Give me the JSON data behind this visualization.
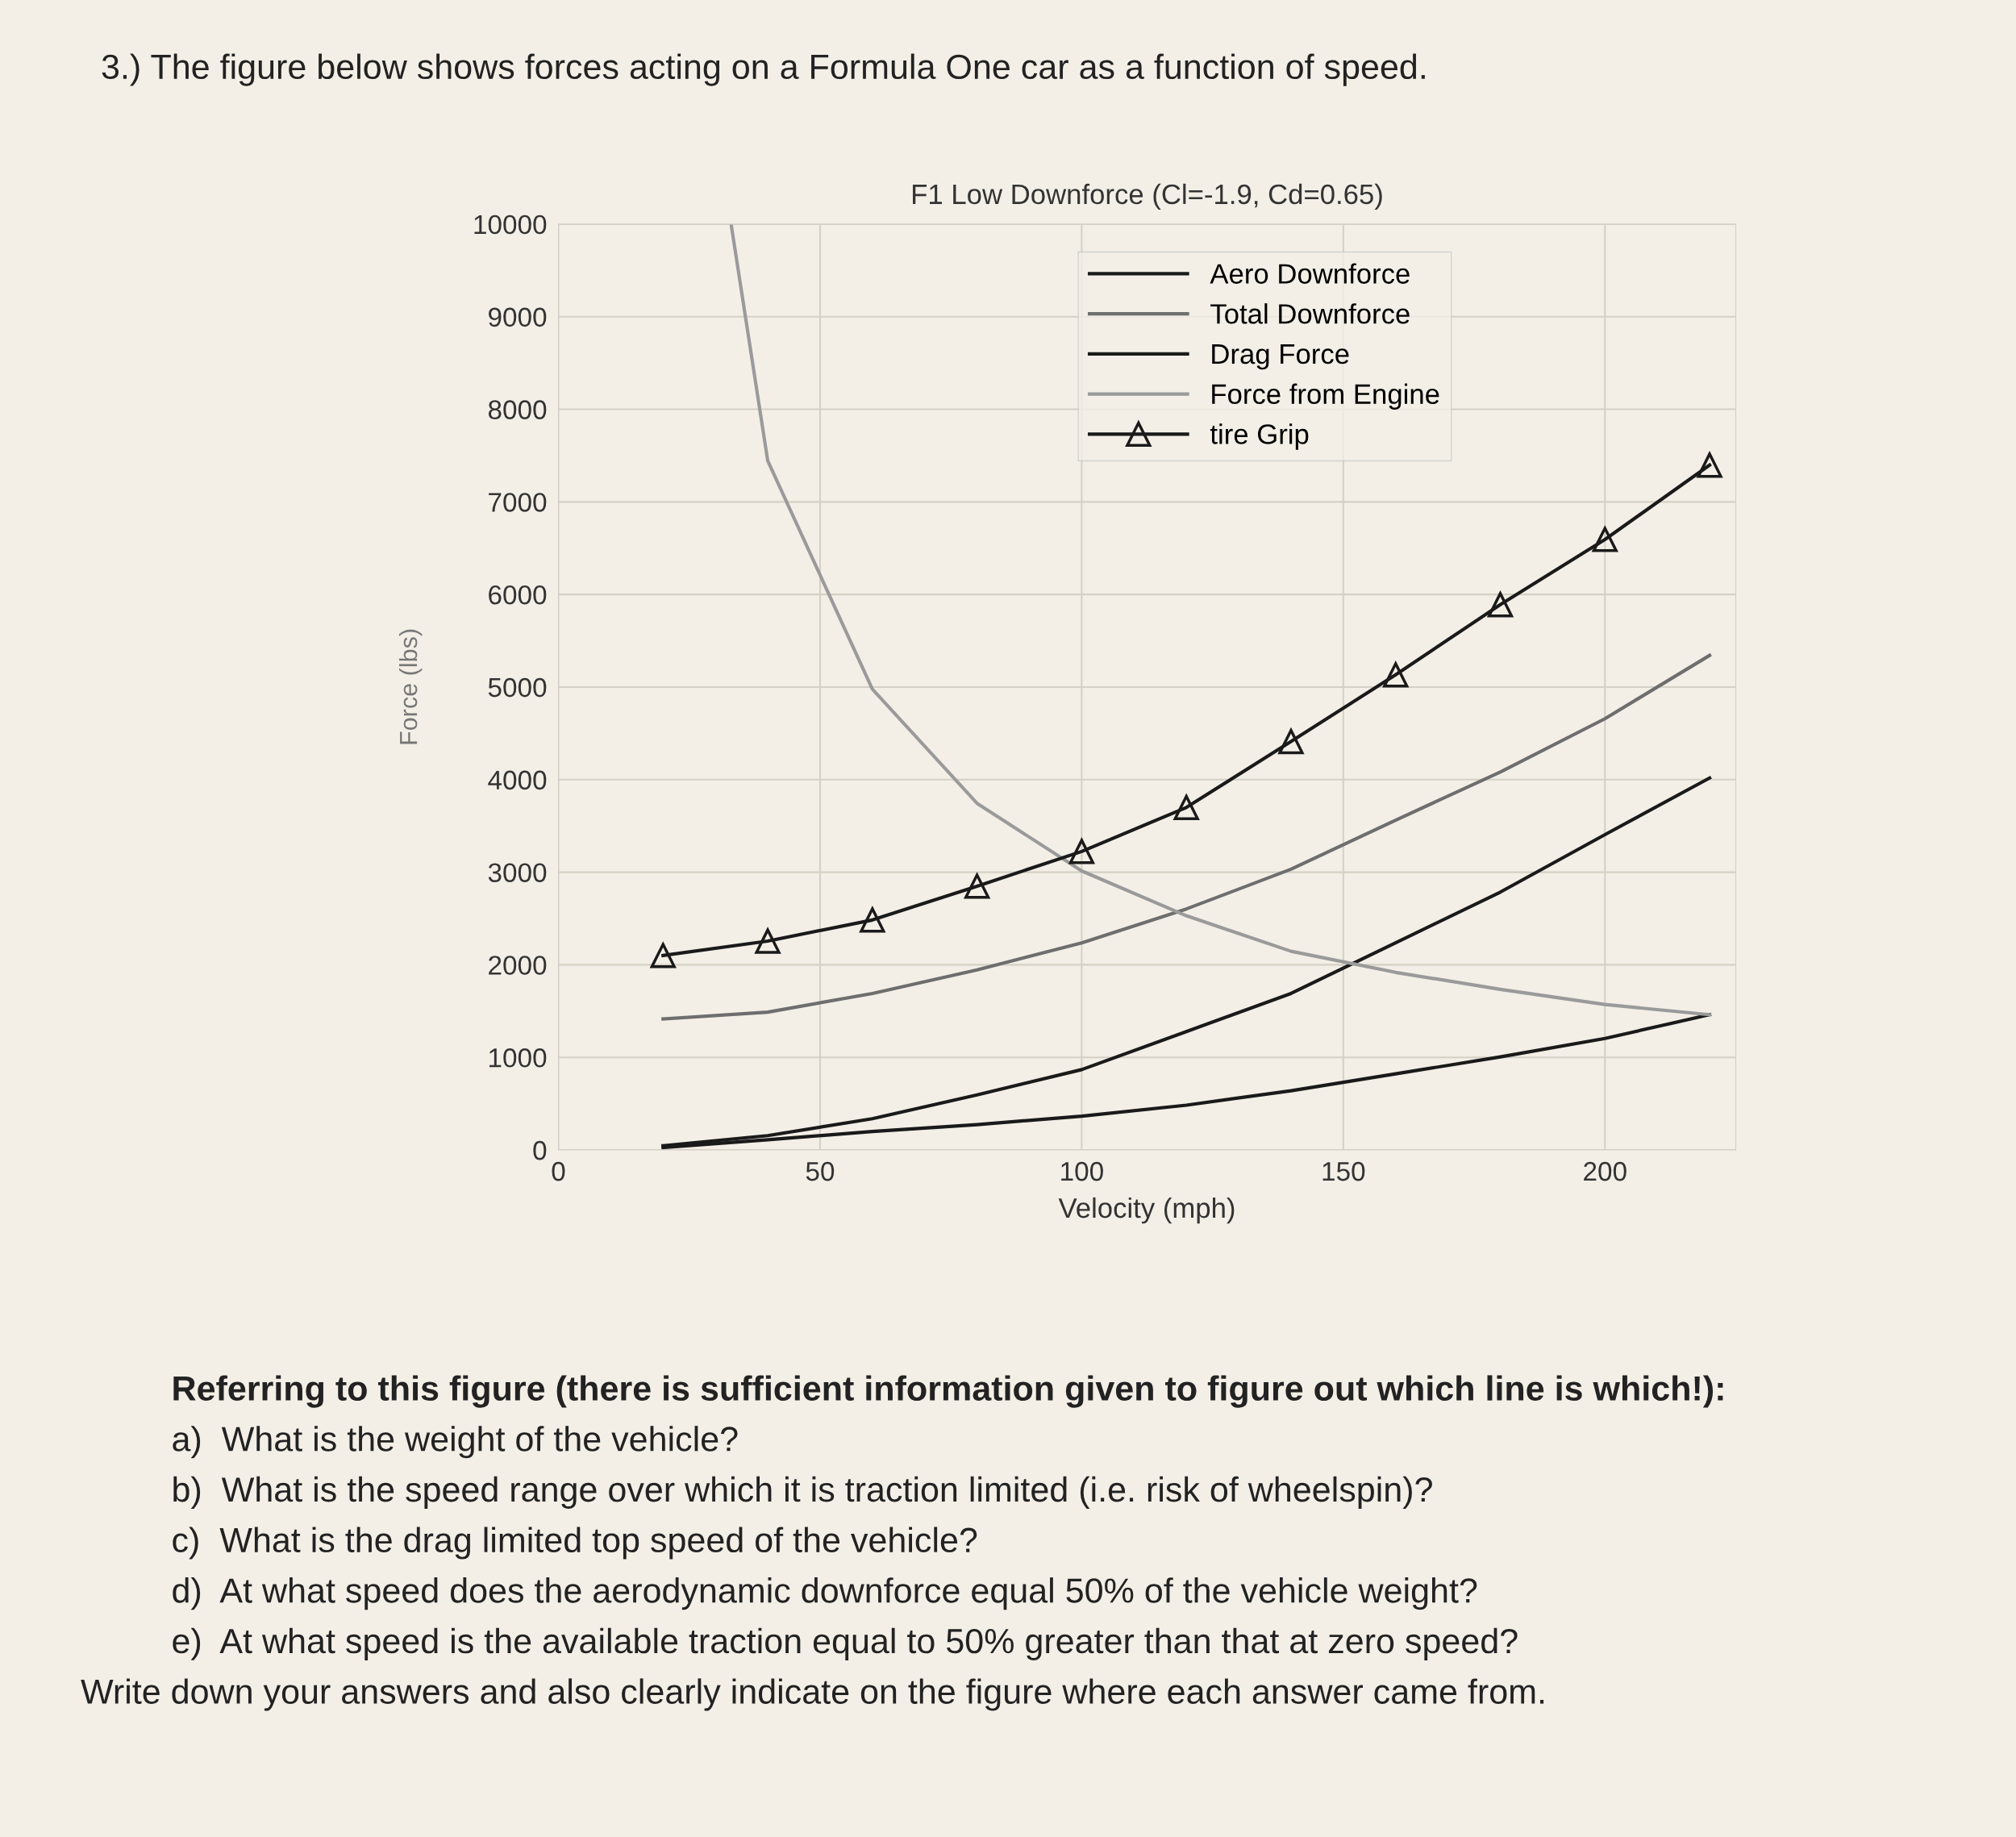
{
  "chart_data": {
    "type": "line",
    "title": "F1 Low Downforce (Cl=-1.9, Cd=0.65)",
    "xlabel": "Velocity (mph)",
    "ylabel": "Force (lbs)",
    "x": [
      20,
      40,
      60,
      80,
      100,
      120,
      140,
      160,
      180,
      200,
      220
    ],
    "series": [
      {
        "name": "Aero Downforce",
        "color": "#1a1a1a",
        "values": [
          46,
          155,
          338,
          594,
          868,
          1279,
          1690,
          2237,
          2785,
          3406,
          4018
        ]
      },
      {
        "name": "Total Downforce",
        "color": "#6e6e6e",
        "values": [
          1416,
          1489,
          1690,
          1945,
          2237,
          2603,
          3032,
          3562,
          4082,
          4658,
          5342
        ]
      },
      {
        "name": "Drag Force",
        "color": "#1a1a1a",
        "values": [
          27,
          110,
          200,
          274,
          365,
          484,
          639,
          822,
          1005,
          1205,
          1461
        ]
      },
      {
        "name": "Force from Engine",
        "color": "#9a9a9a",
        "x": [
          33,
          40,
          60,
          80,
          100,
          120,
          140,
          160,
          180,
          200,
          220
        ],
        "values": [
          10000,
          7443,
          4977,
          3744,
          3014,
          2530,
          2146,
          1918,
          1735,
          1571,
          1461
        ]
      },
      {
        "name": "tire Grip",
        "color": "#1a1a1a",
        "marker": "triangle",
        "values": [
          2100,
          2256,
          2484,
          2849,
          3224,
          3699,
          4411,
          5132,
          5890,
          6594,
          7397
        ]
      }
    ],
    "xlim": [
      0,
      225
    ],
    "xticks": [
      0,
      50,
      100,
      150,
      200
    ],
    "ylim": [
      0,
      10000
    ],
    "yticks": [
      0,
      1000,
      2000,
      3000,
      4000,
      5000,
      6000,
      7000,
      8000,
      9000,
      10000
    ],
    "grid": true,
    "legend": "top",
    "annotations": [
      "3.) The figure below shows forces acting on a Formula One car as a function of speed.",
      "Referring to this figure (there is sufficient information given to figure out which line is which!):",
      "a)  What is the weight of the vehicle?",
      "b)  What is the speed range over which it is traction limited (i.e. risk of wheelspin)?",
      "c)  What is the drag limited top speed of the vehicle?",
      "d)  At what speed does the aerodynamic downforce equal 50% of the vehicle weight?",
      "e)  At what speed is the available traction equal to 50% greater than that at zero speed?",
      "Write down your answers and also clearly indicate on the figure where each answer came from."
    ]
  }
}
